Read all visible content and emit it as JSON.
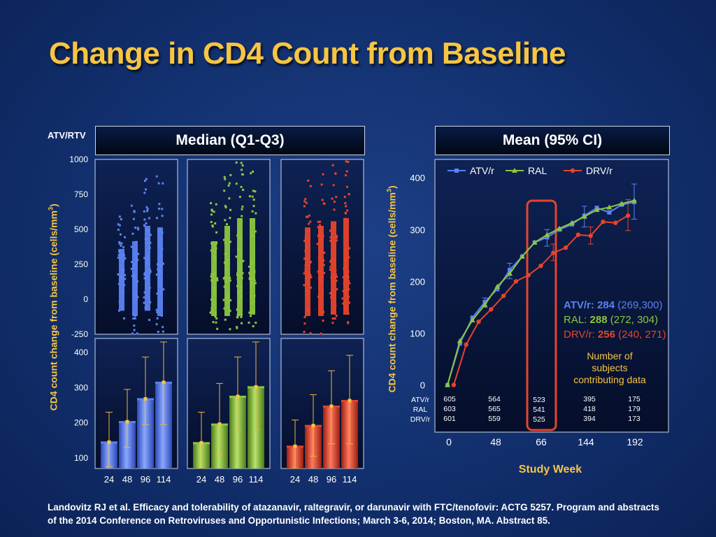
{
  "title": "Change in CD4 Count from Baseline",
  "left_header": "Median (Q1-Q3)",
  "right_header": "Mean (95% CI)",
  "atv_rtv_label": "ATV/RTV",
  "left_ylabel_main": "CD4 count change from baseline (cells/mm",
  "right_ylabel_main": "CD4 count change from baseline (cells/mm",
  "ylabel_sup": "3",
  "ylabel_close": ")",
  "footer": "Landovitz RJ et al. Efficacy and tolerability of atazanavir, raltegravir, or darunavir with FTC/tenofovir: ACTG 5257. Program and abstracts of the 2014 Conference on Retroviruses and Opportunistic Infections; March 3-6, 2014; Boston, MA. Abstract 85.",
  "colors": {
    "atv": "#5b82f2",
    "ral": "#8cc63f",
    "drv": "#e8432a",
    "title": "#f7c542",
    "highlight": "#e8432a"
  },
  "chart_data": [
    {
      "type": "scatter",
      "description_of_axes": "Individual CD4 changes by week, three arms",
      "y_ticks": [
        "1000",
        "750",
        "500",
        "250",
        "0",
        "-250"
      ],
      "ylim": [
        -250,
        1000
      ],
      "x_categories": [
        "24",
        "48",
        "96",
        "114"
      ],
      "arms": [
        {
          "name": "ATV/r",
          "color": "#5b82f2",
          "ranges": [
            [
              -150,
              600
            ],
            [
              -250,
              700
            ],
            [
              -150,
              900
            ],
            [
              -250,
              880
            ]
          ]
        },
        {
          "name": "RAL",
          "color": "#8cc63f",
          "ranges": [
            [
              -250,
              700
            ],
            [
              -250,
              900
            ],
            [
              -250,
              1000
            ],
            [
              -200,
              1000
            ]
          ]
        },
        {
          "name": "DRV/r",
          "color": "#e8432a",
          "ranges": [
            [
              -250,
              880
            ],
            [
              -250,
              900
            ],
            [
              -200,
              960
            ],
            [
              -200,
              1000
            ]
          ]
        }
      ]
    },
    {
      "type": "bar",
      "y_ticks": [
        "400",
        "300",
        "200",
        "100"
      ],
      "ylim": [
        70,
        440
      ],
      "categories": [
        "24",
        "48",
        "96",
        "114"
      ],
      "series": [
        {
          "name": "ATV/r",
          "color": "#5b82f2",
          "values": [
            145,
            203,
            268,
            315
          ],
          "q1": [
            75,
            130,
            195,
            195
          ],
          "q3": [
            230,
            295,
            387,
            430
          ]
        },
        {
          "name": "RAL",
          "color": "#8cc63f",
          "values": [
            143,
            196,
            275,
            302
          ],
          "q1": [
            70,
            110,
            175,
            180
          ],
          "q3": [
            230,
            312,
            387,
            430
          ]
        },
        {
          "name": "DRV/r",
          "color": "#e8432a",
          "values": [
            133,
            192,
            247,
            263
          ],
          "q1": [
            70,
            105,
            140,
            140
          ],
          "q3": [
            208,
            280,
            348,
            392
          ]
        }
      ]
    },
    {
      "type": "line",
      "legend": [
        "ATV/r",
        "RAL",
        "DRV/r"
      ],
      "xticks": [
        "0",
        "48",
        "66",
        "144",
        "192"
      ],
      "xlabel": "Study Week",
      "ylim": [
        -10,
        430
      ],
      "y_ticks": [
        "400",
        "300",
        "200",
        "100",
        "0"
      ],
      "series": [
        {
          "name": "ATV/r",
          "color": "#5b82f2",
          "points": [
            [
              0,
              0
            ],
            [
              1,
              80
            ],
            [
              2,
              130
            ],
            [
              3,
              160
            ],
            [
              4,
              185
            ],
            [
              5,
              222
            ],
            [
              6,
              248
            ],
            [
              7,
              275
            ],
            [
              8,
              285
            ],
            [
              9,
              300
            ],
            [
              10,
              310
            ],
            [
              11,
              327
            ],
            [
              12,
              342
            ],
            [
              13,
              333
            ],
            [
              14,
              348
            ],
            [
              15,
              353
            ]
          ]
        },
        {
          "name": "RAL",
          "color": "#8cc63f",
          "points": [
            [
              0,
              0
            ],
            [
              1,
              85
            ],
            [
              2,
              125
            ],
            [
              3,
              155
            ],
            [
              4,
              190
            ],
            [
              5,
              215
            ],
            [
              6,
              248
            ],
            [
              7,
              275
            ],
            [
              8,
              290
            ],
            [
              9,
              302
            ],
            [
              10,
              313
            ],
            [
              11,
              325
            ],
            [
              12,
              338
            ],
            [
              13,
              343
            ],
            [
              14,
              350
            ],
            [
              15,
              356
            ]
          ]
        },
        {
          "name": "DRV/r",
          "color": "#e8432a",
          "points": [
            [
              0.5,
              0
            ],
            [
              1.5,
              78
            ],
            [
              2.5,
              122
            ],
            [
              3.5,
              146
            ],
            [
              4.5,
              172
            ],
            [
              5.5,
              200
            ],
            [
              6.5,
              212
            ],
            [
              7.5,
              230
            ],
            [
              8.5,
              255
            ],
            [
              9.5,
              265
            ],
            [
              10.5,
              290
            ],
            [
              11.5,
              288
            ],
            [
              12.5,
              315
            ],
            [
              13.5,
              313
            ],
            [
              14.5,
              327
            ]
          ]
        }
      ],
      "ci_whiskers": [
        {
          "color": "#5b82f2",
          "x": 3,
          "lo": 150,
          "hi": 168
        },
        {
          "color": "#5b82f2",
          "x": 5,
          "lo": 205,
          "hi": 235
        },
        {
          "color": "#5b82f2",
          "x": 8,
          "lo": 268,
          "hi": 300
        },
        {
          "color": "#5b82f2",
          "x": 11,
          "lo": 305,
          "hi": 345
        },
        {
          "color": "#5b82f2",
          "x": 15,
          "lo": 320,
          "hi": 388
        },
        {
          "color": "#e8432a",
          "x": 8.5,
          "lo": 240,
          "hi": 272
        },
        {
          "color": "#e8432a",
          "x": 11.5,
          "lo": 272,
          "hi": 305
        },
        {
          "color": "#e8432a",
          "x": 14.5,
          "lo": 298,
          "hi": 358
        }
      ],
      "annotation_lines": [
        {
          "label": "ATV/r: ",
          "value": "284",
          "ci": " (269,300)",
          "color": "#5b82f2"
        },
        {
          "label": "RAL: ",
          "value": "288",
          "ci": " (272, 304)",
          "color": "#8cc63f"
        },
        {
          "label": "DRV/r: ",
          "value": "256",
          "ci": " (240, 271)",
          "color": "#e8432a"
        }
      ],
      "subjects_note": [
        "Number of",
        "subjects",
        "contributing data"
      ],
      "row_labels": [
        "ATV/r",
        "RAL",
        "DRV/r"
      ],
      "subject_counts": [
        [
          "605",
          "603",
          "601"
        ],
        [
          "564",
          "565",
          "559"
        ],
        [
          "523",
          "541",
          "525"
        ],
        [
          "395",
          "418",
          "394"
        ],
        [
          "175",
          "179",
          "173"
        ]
      ]
    }
  ]
}
